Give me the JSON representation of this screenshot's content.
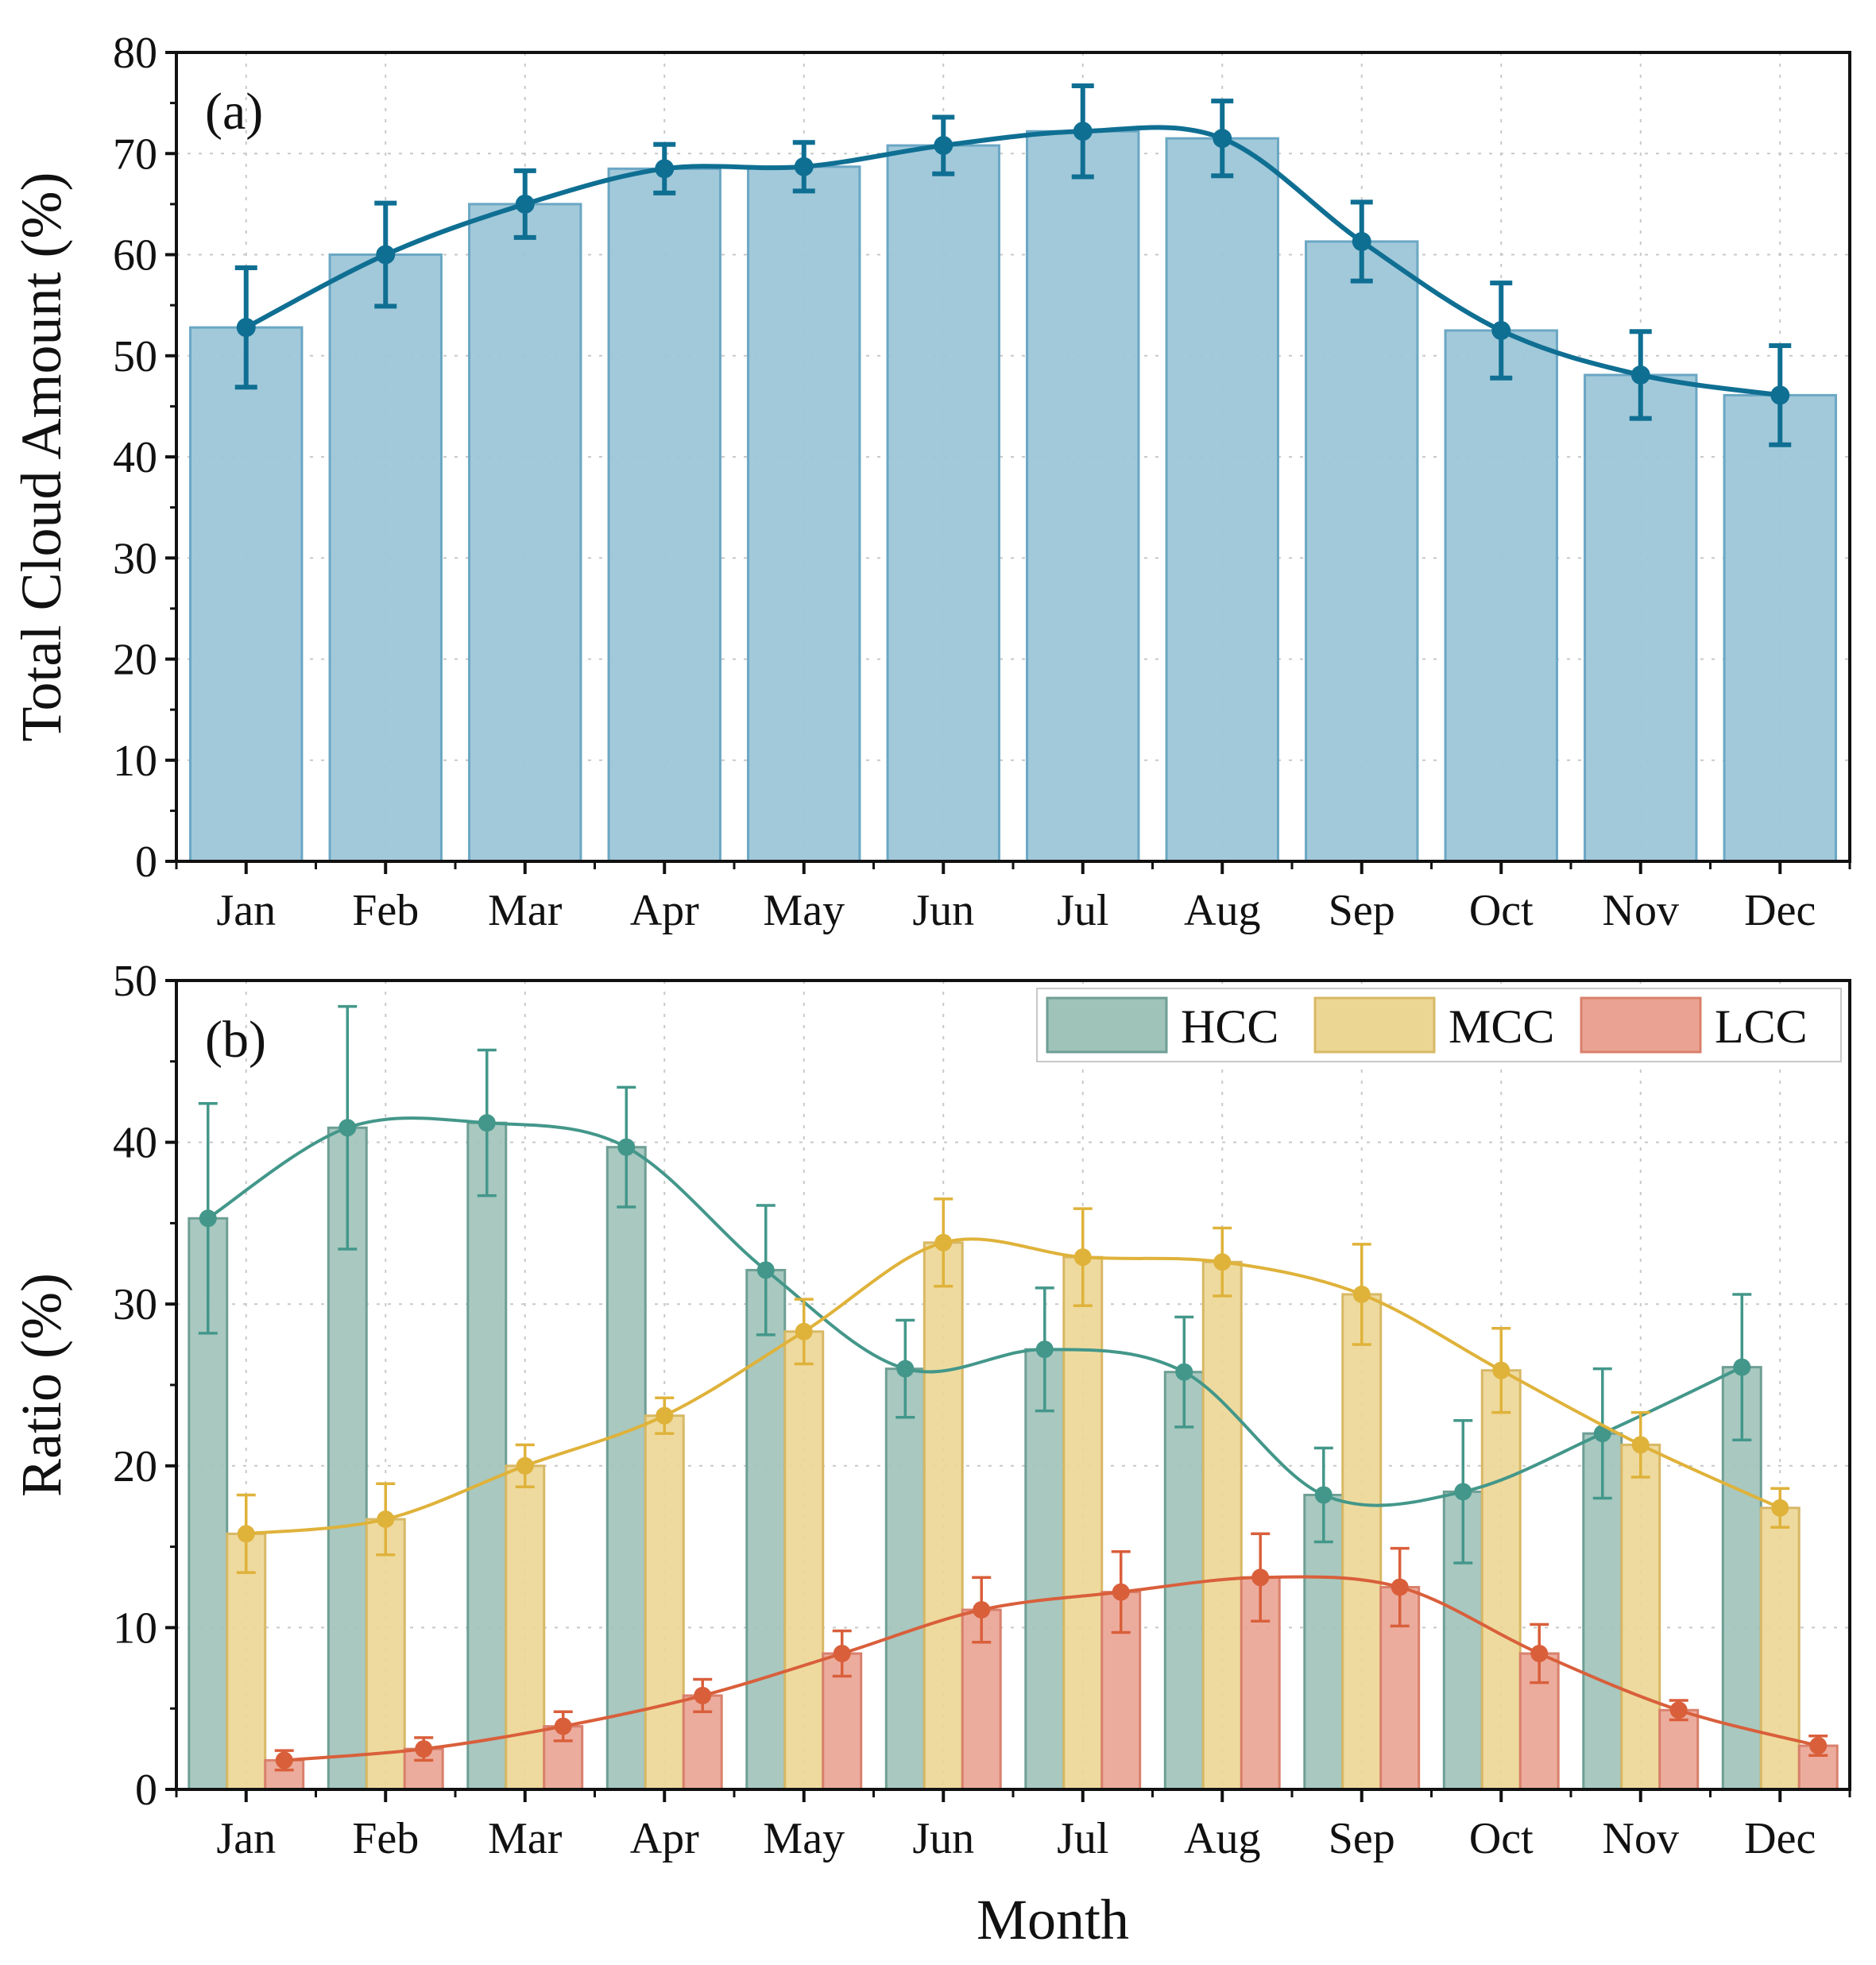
{
  "chart_data": [
    {
      "type": "bar",
      "panel_label": "(a)",
      "title": "",
      "xlabel": "",
      "ylabel": "Total Cloud Amount (%)",
      "ylim": [
        0,
        80
      ],
      "yticks": [
        "0",
        "10",
        "20",
        "30",
        "40",
        "50",
        "60",
        "70",
        "80"
      ],
      "grid": true,
      "categories": [
        "Jan",
        "Feb",
        "Mar",
        "Apr",
        "May",
        "Jun",
        "Jul",
        "Aug",
        "Sep",
        "Oct",
        "Nov",
        "Dec"
      ],
      "series": [
        {
          "name": "Total Cloud Amount",
          "values": [
            52.8,
            60.0,
            65.0,
            68.5,
            68.7,
            70.8,
            72.2,
            71.5,
            61.3,
            52.5,
            48.1,
            46.1
          ],
          "errors": [
            5.9,
            5.1,
            3.3,
            2.4,
            2.4,
            2.8,
            4.5,
            3.7,
            3.9,
            4.7,
            4.3,
            4.9
          ]
        }
      ],
      "colors": {
        "bar": "#9dc6d8",
        "bar_edge": "#6aa7c4",
        "line": "#0f6f93"
      }
    },
    {
      "type": "bar",
      "panel_label": "(b)",
      "title": "",
      "xlabel": "Month",
      "ylabel": "Ratio (%)",
      "ylim": [
        0,
        50
      ],
      "yticks": [
        "0",
        "10",
        "20",
        "30",
        "40",
        "50"
      ],
      "grid": true,
      "legend_position": "top-right",
      "categories": [
        "Jan",
        "Feb",
        "Mar",
        "Apr",
        "May",
        "Jun",
        "Jul",
        "Aug",
        "Sep",
        "Oct",
        "Nov",
        "Dec"
      ],
      "series": [
        {
          "name": "HCC",
          "values": [
            35.3,
            40.9,
            41.2,
            39.7,
            32.1,
            26.0,
            27.2,
            25.8,
            18.2,
            18.4,
            22.0,
            26.1
          ],
          "errors": [
            7.1,
            7.5,
            4.5,
            3.7,
            4.0,
            3.0,
            3.8,
            3.4,
            2.9,
            4.4,
            4.0,
            4.5
          ],
          "color": "#9fc2b9",
          "edge": "#6e9f94",
          "line": "#43978a"
        },
        {
          "name": "MCC",
          "values": [
            15.8,
            16.7,
            20.0,
            23.1,
            28.3,
            33.8,
            32.9,
            32.6,
            30.6,
            25.9,
            21.3,
            17.4
          ],
          "errors": [
            2.4,
            2.2,
            1.3,
            1.1,
            2.0,
            2.7,
            3.0,
            2.1,
            3.1,
            2.6,
            2.0,
            1.2
          ],
          "color": "#ecd694",
          "edge": "#d8b865",
          "line": "#dfb23a"
        },
        {
          "name": "LCC",
          "values": [
            1.8,
            2.5,
            3.9,
            5.8,
            8.4,
            11.1,
            12.2,
            13.1,
            12.5,
            8.4,
            4.9,
            2.7
          ],
          "errors": [
            0.6,
            0.7,
            0.9,
            1.0,
            1.4,
            2.0,
            2.5,
            2.7,
            2.4,
            1.8,
            0.6,
            0.6
          ],
          "color": "#eaa392",
          "edge": "#d9806c",
          "line": "#d95f3b"
        }
      ]
    }
  ]
}
